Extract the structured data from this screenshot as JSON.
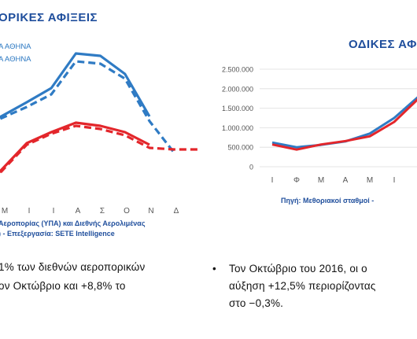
{
  "left": {
    "title": "ΟΡΙΚΕΣ ΑΦΙΞΕΙΣ",
    "legend": [
      "Α ΑΘΗΝΑ",
      "Α ΑΘΗΝΑ"
    ],
    "source_lines": [
      "Αεροπορίας (ΥΠΑ) και Διεθνής Αερολιμένας",
      ") - Επεξεργασία: SETE Intelligence"
    ],
    "text_lines": [
      "1% των διεθνών αεροπορικών",
      "ον Οκτώβριο και +8,8% το"
    ]
  },
  "right": {
    "title": "ΟΔΙΚΕΣ ΑΦ",
    "source": "Πηγή: Μεθοριακοί σταθμοί -",
    "text_lines": [
      "Τον Οκτώβριο του 2016, οι ο",
      "αύξηση +12,5% περιορίζοντας",
      "στο −0,3%."
    ],
    "bullet": "•"
  },
  "colors": {
    "blue": "#2f7bc4",
    "red": "#e3262b",
    "title": "#1f4e9c"
  },
  "chart_data": [
    {
      "type": "line",
      "title": "ΟΡΙΚΕΣ ΑΦΙΞΕΙΣ",
      "categories": [
        "Μ",
        "Ι",
        "Ι",
        "Α",
        "Σ",
        "Ο",
        "Ν",
        "Δ"
      ],
      "series": [
        {
          "name": "Α ΑΘΗΝΑ",
          "style": "solid",
          "color": "#2f7bc4",
          "values": [
            90,
            72,
            28,
            31,
            54,
            108,
            null,
            null
          ]
        },
        {
          "name": "Α ΑΘΗΝΑ",
          "style": "dashed",
          "color": "#2f7bc4",
          "values": [
            96,
            80,
            38,
            41,
            60,
            114,
            154,
            null
          ]
        },
        {
          "name": "",
          "style": "solid",
          "color": "#e3262b",
          "values": [
            142,
            128,
            116,
            120,
            128,
            144,
            null,
            null
          ]
        },
        {
          "name": "",
          "style": "dashed",
          "color": "#e3262b",
          "values": [
            144,
            130,
            120,
            124,
            132,
            148,
            150,
            150
          ]
        }
      ]
    },
    {
      "type": "line",
      "title": "ΟΔΙΚΕΣ ΑΦ",
      "categories": [
        "Ι",
        "Φ",
        "Μ",
        "Α",
        "Μ",
        "Ι",
        "Ι"
      ],
      "ylim": [
        0,
        2500000
      ],
      "yticks": [
        "2.500.000",
        "2.000.000",
        "1.500.000",
        "1.000.000",
        "500.000",
        "0"
      ],
      "series": [
        {
          "name": "",
          "color": "#2f7bc4",
          "values": [
            620000,
            500000,
            560000,
            650000,
            850000,
            1250000,
            1800000
          ]
        },
        {
          "name": "",
          "color": "#e3262b",
          "values": [
            570000,
            440000,
            570000,
            660000,
            780000,
            1150000,
            1750000
          ]
        }
      ]
    }
  ]
}
